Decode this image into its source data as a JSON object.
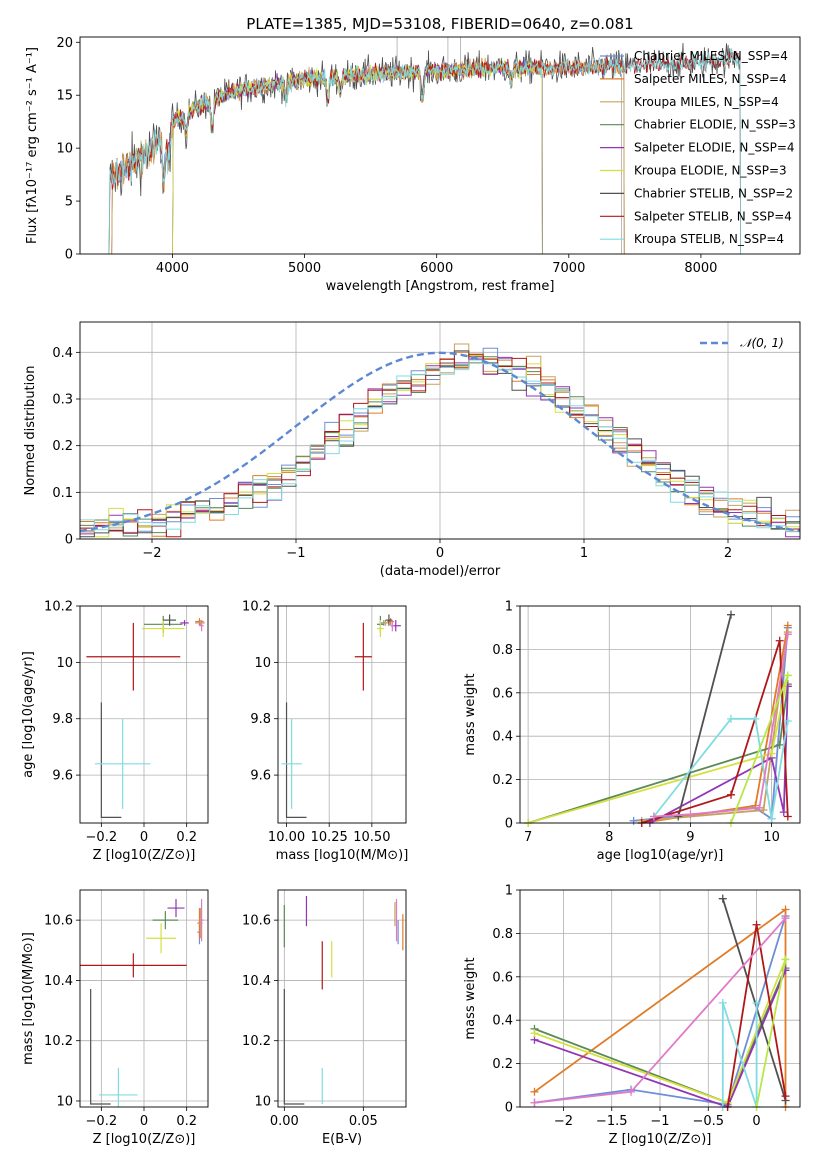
{
  "figure_title": "PLATE=1385, MJD=53108, FIBERID=0640, z=0.081",
  "colors": {
    "Chabrier MILES": "#6e8fd6",
    "Salpeter MILES": "#e07c28",
    "Kroupa MILES": "#c8a25e",
    "Chabrier ELODIE": "#5a8a55",
    "Salpeter ELODIE": "#9334b5",
    "Kroupa ELODIE": "#d5e040",
    "Chabrier STELIB": "#505050",
    "Salpeter STELIB": "#b01818",
    "Kroupa STELIB": "#80dce0",
    "normal": "#5c88d4",
    "pink": "#e07ac8",
    "lime": "#b6e84a"
  },
  "chart_data": [
    {
      "id": "spectrum",
      "type": "line",
      "title": "PLATE=1385, MJD=53108, FIBERID=0640, z=0.081",
      "xlabel": "wavelength [Angstrom, rest frame]",
      "ylabel": "Flux [fλ10⁻¹⁷ erg cm⁻² s⁻¹ A⁻¹]",
      "xlim": [
        3300,
        8750
      ],
      "ylim": [
        0,
        20.5
      ],
      "xticks": [
        4000,
        5000,
        6000,
        7000,
        8000
      ],
      "yticks": [
        0,
        5,
        10,
        15,
        20
      ],
      "legend": "upper right",
      "grid": false,
      "continuum_knots": [
        [
          3520,
          7.0
        ],
        [
          3700,
          8.5
        ],
        [
          3850,
          10.0
        ],
        [
          3950,
          11.0
        ],
        [
          4000,
          12.5
        ],
        [
          4200,
          14.0
        ],
        [
          4500,
          15.5
        ],
        [
          5000,
          16.5
        ],
        [
          5500,
          17.0
        ],
        [
          6000,
          17.3
        ],
        [
          6500,
          17.6
        ],
        [
          7000,
          17.6
        ],
        [
          7500,
          17.8
        ],
        [
          8000,
          18.1
        ],
        [
          8300,
          18.6
        ]
      ],
      "legend_entries": [
        "Chabrier MILES, N_SSP=4",
        "Salpeter MILES, N_SSP=4",
        "Kroupa MILES, N_SSP=4",
        "Chabrier ELODIE, N_SSP=3",
        "Salpeter ELODIE, N_SSP=4",
        "Kroupa ELODIE, N_SSP=3",
        "Chabrier STELIB, N_SSP=2",
        "Salpeter STELIB, N_SSP=4",
        "Kroupa STELIB, N_SSP=4"
      ],
      "series": [
        {
          "name": "Chabrier MILES, N_SSP=4",
          "x_range": [
            3540,
            7420
          ]
        },
        {
          "name": "Salpeter MILES, N_SSP=4",
          "x_range": [
            3540,
            7420
          ]
        },
        {
          "name": "Kroupa MILES, N_SSP=4",
          "x_range": [
            3540,
            7420
          ]
        },
        {
          "name": "Chabrier ELODIE, N_SSP=3",
          "x_range": [
            4000,
            6800
          ]
        },
        {
          "name": "Salpeter ELODIE, N_SSP=4",
          "x_range": [
            4000,
            6800
          ]
        },
        {
          "name": "Kroupa ELODIE, N_SSP=3",
          "x_range": [
            4000,
            6800
          ]
        },
        {
          "name": "Chabrier STELIB, N_SSP=2",
          "x_range": [
            3520,
            8300
          ]
        },
        {
          "name": "Salpeter STELIB, N_SSP=4",
          "x_range": [
            3520,
            8300
          ]
        },
        {
          "name": "Kroupa STELIB, N_SSP=4",
          "x_range": [
            3520,
            8300
          ]
        }
      ]
    },
    {
      "id": "histogram",
      "type": "line",
      "xlabel": "(data-model)/error",
      "ylabel": "Normed distribution",
      "xlim": [
        -2.5,
        2.5
      ],
      "ylim": [
        0,
        0.465
      ],
      "xticks": [
        -2,
        -1,
        0,
        1,
        2
      ],
      "yticks": [
        0.0,
        0.1,
        0.2,
        0.3,
        0.4
      ],
      "grid": true,
      "legend": "upper right",
      "reference_curve": {
        "name": "N(0,1)",
        "label_display": "𝒩(0, 1)",
        "mu": 0,
        "sigma": 1
      },
      "bin_width": 0.1,
      "series_profile": {
        "center": 0.25,
        "width": 1.25,
        "peak": 0.36
      }
    },
    {
      "id": "age_vs_Z",
      "type": "scatter",
      "xlabel": "Z [log10(Z/Z⊙)]",
      "ylabel": "age [log10(age/yr)]",
      "xlim": [
        -0.3,
        0.3
      ],
      "ylim": [
        9.43,
        10.2
      ],
      "xticks": [
        -0.2,
        0.0,
        0.2
      ],
      "yticks": [
        9.6,
        9.8,
        10.0,
        10.2
      ],
      "grid": true,
      "points": [
        {
          "x": 0.26,
          "y": 10.14,
          "xerr": 0.02,
          "yerr": 0.01,
          "color": "Chabrier MILES"
        },
        {
          "x": 0.26,
          "y": 10.145,
          "xerr": 0.02,
          "yerr": 0.012,
          "color": "Salpeter MILES"
        },
        {
          "x": 0.265,
          "y": 10.14,
          "xerr": 0.02,
          "yerr": 0.01,
          "color": "Kroupa MILES"
        },
        {
          "x": 0.09,
          "y": 10.135,
          "xerr": 0.09,
          "yerr": 0.03,
          "color": "Chabrier ELODIE"
        },
        {
          "x": 0.19,
          "y": 10.14,
          "xerr": 0.02,
          "yerr": 0.01,
          "color": "Salpeter ELODIE"
        },
        {
          "x": 0.09,
          "y": 10.12,
          "xerr": 0.1,
          "yerr": 0.03,
          "color": "Kroupa ELODIE"
        },
        {
          "x": -0.2,
          "y": 9.45,
          "xerr": 0.0,
          "yerr": 0.0,
          "color": "Chabrier STELIB",
          "corner": true
        },
        {
          "x": -0.05,
          "y": 10.02,
          "xerr": 0.22,
          "yerr": 0.12,
          "color": "Salpeter STELIB"
        },
        {
          "x": -0.1,
          "y": 9.64,
          "xerr": 0.13,
          "yerr": 0.16,
          "color": "Kroupa STELIB"
        },
        {
          "x": 0.12,
          "y": 10.15,
          "xerr": 0.03,
          "yerr": 0.02,
          "color": "Chabrier STELIB"
        },
        {
          "x": 0.27,
          "y": 10.13,
          "xerr": 0.01,
          "yerr": 0.02,
          "color": "pink"
        }
      ]
    },
    {
      "id": "age_vs_mass",
      "type": "scatter",
      "xlabel": "mass [log10(M/M⊙)]",
      "ylabel": "",
      "xlim": [
        9.95,
        10.7
      ],
      "ylim": [
        9.43,
        10.2
      ],
      "xticks": [
        10.0,
        10.25,
        10.5
      ],
      "xtick_labels": [
        "10.00",
        "10.25",
        "10.50"
      ],
      "yticks": [
        9.6,
        9.8,
        10.0,
        10.2
      ],
      "grid": true,
      "points": [
        {
          "x": 10.57,
          "y": 10.14,
          "xerr": 0.02,
          "yerr": 0.01,
          "color": "Chabrier MILES"
        },
        {
          "x": 10.61,
          "y": 10.145,
          "xerr": 0.02,
          "yerr": 0.012,
          "color": "Salpeter MILES"
        },
        {
          "x": 10.58,
          "y": 10.14,
          "xerr": 0.02,
          "yerr": 0.01,
          "color": "Kroupa MILES"
        },
        {
          "x": 10.55,
          "y": 10.135,
          "xerr": 0.02,
          "yerr": 0.03,
          "color": "Chabrier ELODIE"
        },
        {
          "x": 10.64,
          "y": 10.13,
          "xerr": 0.03,
          "yerr": 0.02,
          "color": "Salpeter ELODIE"
        },
        {
          "x": 10.55,
          "y": 10.12,
          "xerr": 0.02,
          "yerr": 0.03,
          "color": "Kroupa ELODIE"
        },
        {
          "x": 10.0,
          "y": 9.45,
          "xerr": 0.0,
          "yerr": 0.0,
          "color": "Chabrier STELIB",
          "corner": true
        },
        {
          "x": 10.45,
          "y": 10.02,
          "xerr": 0.05,
          "yerr": 0.12,
          "color": "Salpeter STELIB"
        },
        {
          "x": 10.03,
          "y": 9.64,
          "xerr": 0.06,
          "yerr": 0.16,
          "color": "Kroupa STELIB"
        },
        {
          "x": 10.6,
          "y": 10.15,
          "xerr": 0.02,
          "yerr": 0.02,
          "color": "Chabrier STELIB"
        },
        {
          "x": 10.62,
          "y": 10.13,
          "xerr": 0.01,
          "yerr": 0.02,
          "color": "pink"
        }
      ]
    },
    {
      "id": "mass_weight_vs_age",
      "type": "line",
      "xlabel": "age [log10(age/yr)]",
      "ylabel": "mass weight",
      "xlim": [
        6.9,
        10.35
      ],
      "ylim": [
        0,
        1.0
      ],
      "xticks": [
        7,
        8,
        9,
        10
      ],
      "yticks": [
        0.0,
        0.2,
        0.4,
        0.6,
        0.8,
        1.0
      ],
      "grid": true,
      "series": [
        {
          "name": "Chabrier MILES",
          "x": [
            8.3,
            9.8,
            10.0,
            10.2
          ],
          "y": [
            0.01,
            0.07,
            0.02,
            0.9
          ]
        },
        {
          "name": "Salpeter MILES",
          "x": [
            8.4,
            9.8,
            10.2
          ],
          "y": [
            0.0,
            0.08,
            0.91
          ]
        },
        {
          "name": "Kroupa MILES",
          "x": [
            8.4,
            9.9,
            10.2
          ],
          "y": [
            0.01,
            0.06,
            0.88
          ]
        },
        {
          "name": "Chabrier ELODIE",
          "x": [
            7.0,
            10.1,
            10.2
          ],
          "y": [
            0.0,
            0.36,
            0.64
          ]
        },
        {
          "name": "Salpeter ELODIE",
          "x": [
            8.5,
            10.0,
            10.15,
            10.2
          ],
          "y": [
            0.0,
            0.3,
            0.05,
            0.63
          ]
        },
        {
          "name": "Kroupa ELODIE",
          "x": [
            7.0,
            10.0,
            10.2
          ],
          "y": [
            0.0,
            0.32,
            0.68
          ]
        },
        {
          "name": "Chabrier STELIB",
          "x": [
            8.85,
            9.5
          ],
          "y": [
            0.03,
            0.96
          ]
        },
        {
          "name": "Salpeter STELIB",
          "x": [
            8.4,
            9.5,
            10.1,
            10.2
          ],
          "y": [
            0.0,
            0.13,
            0.84,
            0.03
          ]
        },
        {
          "name": "Kroupa STELIB",
          "x": [
            8.55,
            9.5,
            9.8,
            10.0,
            10.2
          ],
          "y": [
            0.03,
            0.48,
            0.48,
            0.02,
            0.47
          ]
        },
        {
          "name": "pink",
          "x": [
            8.55,
            9.0,
            9.85,
            10.2
          ],
          "y": [
            0.03,
            0.04,
            0.07,
            0.87
          ]
        },
        {
          "name": "lime",
          "x": [
            9.5,
            10.2
          ],
          "y": [
            0.0,
            0.68
          ]
        }
      ]
    },
    {
      "id": "mass_vs_Z",
      "type": "scatter",
      "xlabel": "Z [log10(Z/Z⊙)]",
      "ylabel": "mass [log10(M/M⊙)]",
      "xlim": [
        -0.3,
        0.3
      ],
      "ylim": [
        9.98,
        10.7
      ],
      "xticks": [
        -0.2,
        0.0,
        0.2
      ],
      "yticks": [
        10.0,
        10.2,
        10.4,
        10.6
      ],
      "grid": true,
      "points": [
        {
          "x": 0.26,
          "y": 10.56,
          "xerr": 0.01,
          "yerr": 0.04,
          "color": "Chabrier MILES"
        },
        {
          "x": 0.26,
          "y": 10.59,
          "xerr": 0.01,
          "yerr": 0.05,
          "color": "Salpeter MILES"
        },
        {
          "x": 0.265,
          "y": 10.59,
          "xerr": 0.01,
          "yerr": 0.05,
          "color": "Kroupa MILES"
        },
        {
          "x": 0.1,
          "y": 10.6,
          "xerr": 0.06,
          "yerr": 0.03,
          "color": "Chabrier ELODIE"
        },
        {
          "x": 0.15,
          "y": 10.64,
          "xerr": 0.04,
          "yerr": 0.03,
          "color": "Salpeter ELODIE"
        },
        {
          "x": 0.08,
          "y": 10.54,
          "xerr": 0.07,
          "yerr": 0.05,
          "color": "Kroupa ELODIE"
        },
        {
          "x": -0.25,
          "y": 9.99,
          "xerr": 0.0,
          "yerr": 0.0,
          "color": "Chabrier STELIB",
          "corner": true
        },
        {
          "x": -0.05,
          "y": 10.45,
          "xerr": 0.25,
          "yerr": 0.04,
          "color": "Salpeter STELIB"
        },
        {
          "x": -0.12,
          "y": 10.02,
          "xerr": 0.09,
          "yerr": 0.09,
          "color": "Kroupa STELIB"
        },
        {
          "x": 0.27,
          "y": 10.6,
          "xerr": 0.01,
          "yerr": 0.07,
          "color": "pink"
        }
      ]
    },
    {
      "id": "mass_vs_ebv",
      "type": "scatter",
      "xlabel": "E(B-V)",
      "ylabel": "",
      "xlim": [
        -0.004,
        0.077
      ],
      "ylim": [
        9.98,
        10.7
      ],
      "xticks": [
        0.0,
        0.05
      ],
      "xtick_labels": [
        "0.00",
        "0.05"
      ],
      "yticks": [
        10.0,
        10.2,
        10.4,
        10.6
      ],
      "grid": true,
      "points": [
        {
          "x": 0.072,
          "y": 10.56,
          "xerr": 0,
          "yerr": 0.04,
          "color": "Chabrier MILES"
        },
        {
          "x": 0.075,
          "y": 10.56,
          "xerr": 0,
          "yerr": 0.06,
          "color": "Salpeter MILES"
        },
        {
          "x": 0.07,
          "y": 10.62,
          "xerr": 0,
          "yerr": 0.04,
          "color": "Kroupa MILES"
        },
        {
          "x": 0.0,
          "y": 10.58,
          "xerr": 0,
          "yerr": 0.07,
          "color": "Chabrier ELODIE"
        },
        {
          "x": 0.014,
          "y": 10.63,
          "xerr": 0,
          "yerr": 0.05,
          "color": "Salpeter ELODIE"
        },
        {
          "x": 0.03,
          "y": 10.47,
          "xerr": 0,
          "yerr": 0.06,
          "color": "Kroupa ELODIE"
        },
        {
          "x": 0.0,
          "y": 9.99,
          "xerr": 0,
          "yerr": 0.0,
          "color": "Chabrier STELIB",
          "corner": true
        },
        {
          "x": 0.024,
          "y": 10.45,
          "xerr": 0,
          "yerr": 0.08,
          "color": "Salpeter STELIB"
        },
        {
          "x": 0.024,
          "y": 10.05,
          "xerr": 0,
          "yerr": 0.06,
          "color": "Kroupa STELIB"
        },
        {
          "x": 0.071,
          "y": 10.6,
          "xerr": 0,
          "yerr": 0.07,
          "color": "pink"
        }
      ]
    },
    {
      "id": "mass_weight_vs_Z",
      "type": "line",
      "xlabel": "Z [log10(Z/Z⊙)]",
      "ylabel": "mass weight",
      "xlim": [
        -2.45,
        0.45
      ],
      "ylim": [
        0,
        1.0
      ],
      "xticks": [
        -2.0,
        -1.5,
        -1.0,
        -0.5,
        0.0
      ],
      "yticks": [
        0.0,
        0.2,
        0.4,
        0.6,
        0.8,
        1.0
      ],
      "grid": true,
      "series": [
        {
          "name": "Chabrier MILES",
          "x": [
            -2.3,
            -1.3,
            -0.3,
            0.3
          ],
          "y": [
            0.02,
            0.08,
            0.01,
            0.88
          ]
        },
        {
          "name": "Salpeter MILES",
          "x": [
            -2.3,
            0.3,
            0.3
          ],
          "y": [
            0.07,
            0.91,
            0.0
          ]
        },
        {
          "name": "Chabrier ELODIE",
          "x": [
            -2.3,
            -0.3,
            0.3
          ],
          "y": [
            0.36,
            0.02,
            0.64
          ]
        },
        {
          "name": "Salpeter ELODIE",
          "x": [
            -2.3,
            -0.3,
            0.3
          ],
          "y": [
            0.31,
            0.0,
            0.63
          ]
        },
        {
          "name": "Kroupa ELODIE",
          "x": [
            -2.3,
            -0.3,
            0.3
          ],
          "y": [
            0.34,
            0.02,
            0.68
          ]
        },
        {
          "name": "Chabrier STELIB",
          "x": [
            -0.35,
            0.3
          ],
          "y": [
            0.96,
            0.03
          ]
        },
        {
          "name": "Salpeter STELIB",
          "x": [
            -0.3,
            0.0,
            0.3
          ],
          "y": [
            0.0,
            0.84,
            0.05
          ]
        },
        {
          "name": "Kroupa STELIB",
          "x": [
            -0.35,
            -0.35,
            0.0,
            0.0
          ],
          "y": [
            0.0,
            0.48,
            0.0,
            0.48
          ]
        },
        {
          "name": "pink",
          "x": [
            -2.3,
            -1.3,
            0.3
          ],
          "y": [
            0.02,
            0.07,
            0.87
          ]
        },
        {
          "name": "lime",
          "x": [
            0.0,
            0.3
          ],
          "y": [
            0.0,
            0.68
          ]
        }
      ]
    }
  ]
}
